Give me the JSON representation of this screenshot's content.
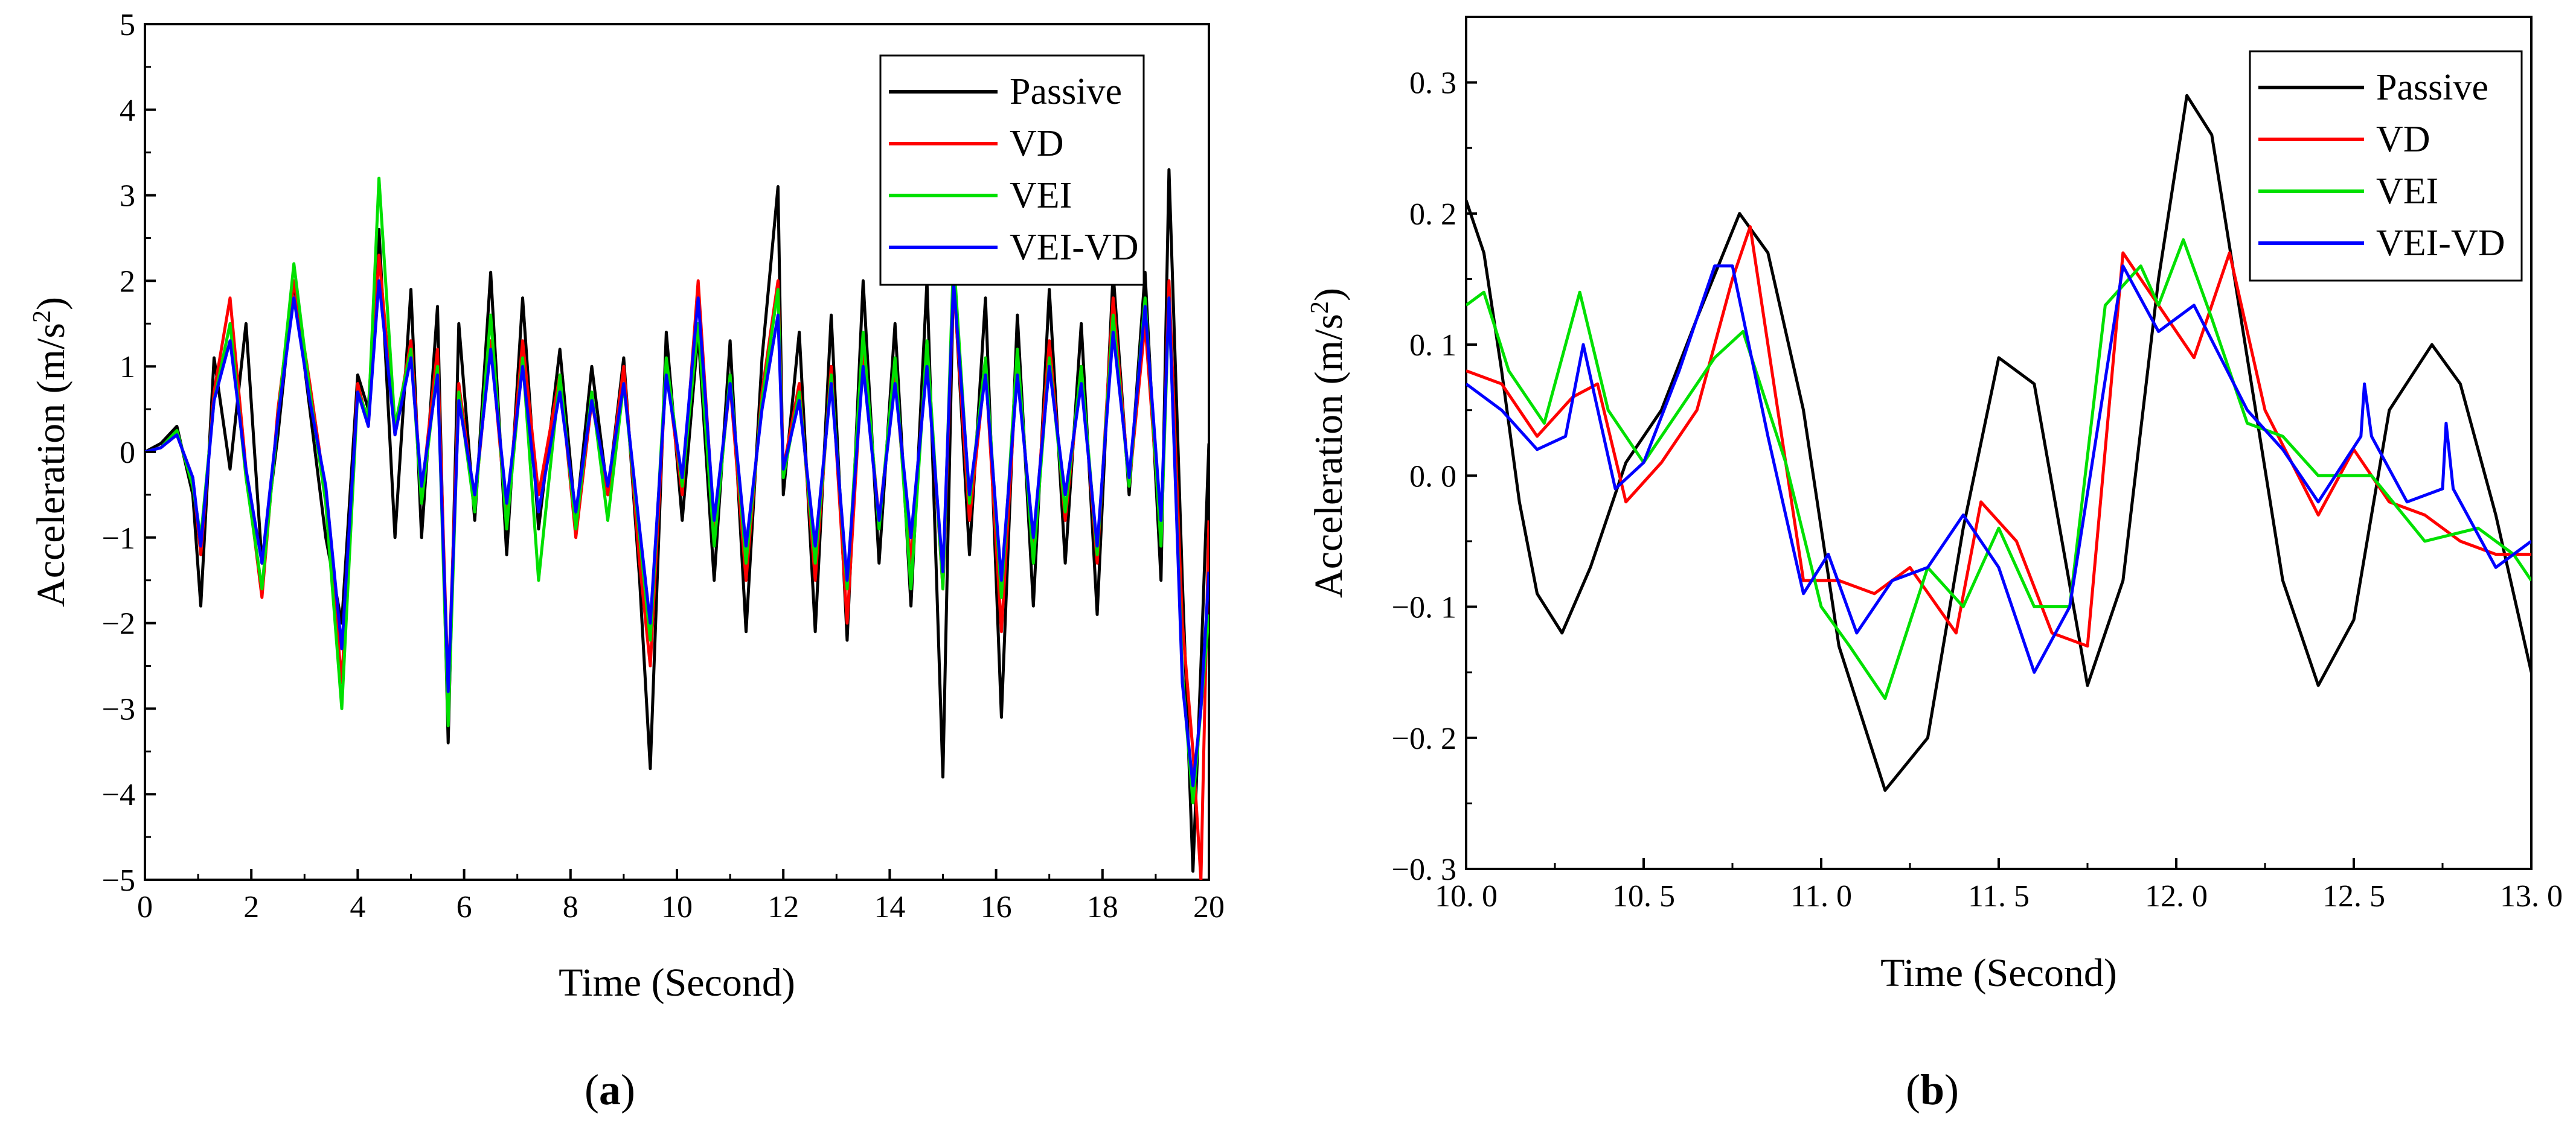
{
  "chart_data": [
    {
      "type": "line",
      "panel_label": "a",
      "title": "",
      "xlabel": "Time (Second)",
      "ylabel": "Acceleration (m/s",
      "ylabel_sup": "2",
      "ylabel_close": ")",
      "xlim": [
        0,
        20
      ],
      "ylim": [
        -5,
        5
      ],
      "xticks": [
        0,
        2,
        4,
        6,
        8,
        10,
        12,
        14,
        16,
        18,
        20
      ],
      "xtick_labels": [
        "0",
        "2",
        "4",
        "6",
        "8",
        "10",
        "12",
        "14",
        "16",
        "18",
        "20"
      ],
      "yticks": [
        5,
        4,
        3,
        2,
        1,
        0,
        -1,
        -2,
        -3,
        -4,
        -5
      ],
      "ytick_labels": [
        "5",
        "4",
        "3",
        "2",
        "1",
        "0",
        "−1",
        "−2",
        "−3",
        "−4",
        "−5"
      ],
      "grid": false,
      "legend_position": "top-right",
      "series": [
        {
          "name": "Passive",
          "color": "#000000",
          "x": [
            0,
            0.3,
            0.6,
            0.9,
            1.05,
            1.3,
            1.6,
            1.9,
            2.2,
            2.5,
            2.8,
            3.1,
            3.4,
            3.7,
            4.0,
            4.2,
            4.4,
            4.7,
            5.0,
            5.2,
            5.5,
            5.7,
            5.9,
            6.2,
            6.5,
            6.8,
            7.1,
            7.4,
            7.8,
            8.1,
            8.4,
            8.7,
            9.0,
            9.3,
            9.5,
            9.8,
            10.1,
            10.4,
            10.7,
            11.0,
            11.3,
            11.6,
            11.9,
            12.0,
            12.3,
            12.6,
            12.9,
            13.2,
            13.5,
            13.8,
            14.1,
            14.4,
            14.7,
            15.0,
            15.2,
            15.5,
            15.8,
            16.1,
            16.4,
            16.7,
            17.0,
            17.3,
            17.6,
            17.9,
            18.2,
            18.5,
            18.8,
            19.1,
            19.25,
            19.5,
            19.7,
            19.85,
            20.0
          ],
          "values": [
            0,
            0.1,
            0.3,
            -0.5,
            -1.8,
            1.1,
            -0.2,
            1.5,
            -1.3,
            0.2,
            2.0,
            0.5,
            -1.0,
            -2.0,
            0.9,
            0.5,
            2.6,
            -1.0,
            1.9,
            -1.0,
            1.7,
            -3.4,
            1.5,
            -0.8,
            2.1,
            -1.2,
            1.8,
            -0.9,
            1.2,
            -0.8,
            1.0,
            -0.5,
            1.1,
            -1.5,
            -3.7,
            1.4,
            -0.8,
            1.4,
            -1.5,
            1.3,
            -2.1,
            1.1,
            3.1,
            -0.5,
            1.4,
            -2.1,
            1.6,
            -2.2,
            2.0,
            -1.3,
            1.5,
            -1.8,
            2.0,
            -3.8,
            2.1,
            -1.2,
            1.8,
            -3.1,
            1.6,
            -1.8,
            1.9,
            -1.3,
            1.5,
            -1.9,
            2.1,
            -0.5,
            2.1,
            -1.5,
            3.3,
            -1.5,
            -4.9,
            -2.5,
            0.1
          ]
        },
        {
          "name": "VD",
          "color": "#ff0000",
          "x": [
            0,
            0.3,
            0.6,
            0.9,
            1.05,
            1.3,
            1.6,
            1.9,
            2.2,
            2.5,
            2.8,
            3.1,
            3.4,
            3.7,
            4.0,
            4.2,
            4.4,
            4.7,
            5.0,
            5.2,
            5.5,
            5.7,
            5.9,
            6.2,
            6.5,
            6.8,
            7.1,
            7.4,
            7.8,
            8.1,
            8.4,
            8.7,
            9.0,
            9.3,
            9.5,
            9.8,
            10.1,
            10.4,
            10.7,
            11.0,
            11.3,
            11.6,
            11.9,
            12.0,
            12.3,
            12.6,
            12.9,
            13.2,
            13.5,
            13.8,
            14.1,
            14.4,
            14.7,
            15.0,
            15.2,
            15.5,
            15.8,
            16.1,
            16.4,
            16.7,
            17.0,
            17.3,
            17.6,
            17.9,
            18.2,
            18.5,
            18.8,
            19.1,
            19.25,
            19.5,
            19.7,
            19.85,
            20.0
          ],
          "values": [
            0,
            0.05,
            0.2,
            -0.3,
            -1.2,
            0.7,
            1.8,
            -0.2,
            -1.7,
            0.5,
            2.0,
            0.8,
            -0.5,
            -2.7,
            0.8,
            0.3,
            2.3,
            0.2,
            1.3,
            -0.5,
            1.2,
            -2.8,
            0.8,
            -0.6,
            1.3,
            -0.8,
            1.3,
            -0.5,
            0.9,
            -1.0,
            0.6,
            -0.5,
            1.0,
            -1.3,
            -2.5,
            1.0,
            -0.5,
            2.0,
            -0.9,
            0.8,
            -1.5,
            0.7,
            2.0,
            -0.2,
            0.8,
            -1.5,
            1.0,
            -2.0,
            1.2,
            -0.8,
            0.9,
            -1.3,
            1.2,
            -1.6,
            2.0,
            -0.8,
            1.0,
            -2.1,
            1.1,
            -1.2,
            1.3,
            -0.8,
            1.0,
            -1.3,
            1.8,
            -0.4,
            1.5,
            -1.0,
            2.0,
            -2.0,
            -3.5,
            -5.0,
            -0.8
          ]
        },
        {
          "name": "VEI",
          "color": "#00e000",
          "x": [
            0,
            0.3,
            0.6,
            0.9,
            1.05,
            1.3,
            1.6,
            1.9,
            2.2,
            2.5,
            2.8,
            3.1,
            3.4,
            3.7,
            4.0,
            4.2,
            4.4,
            4.7,
            5.0,
            5.2,
            5.5,
            5.7,
            5.9,
            6.2,
            6.5,
            6.8,
            7.1,
            7.4,
            7.8,
            8.1,
            8.4,
            8.7,
            9.0,
            9.3,
            9.5,
            9.8,
            10.1,
            10.4,
            10.7,
            11.0,
            11.3,
            11.6,
            11.9,
            12.0,
            12.3,
            12.6,
            12.9,
            13.2,
            13.5,
            13.8,
            14.1,
            14.4,
            14.7,
            15.0,
            15.2,
            15.5,
            15.8,
            16.1,
            16.4,
            16.7,
            17.0,
            17.3,
            17.6,
            17.9,
            18.2,
            18.5,
            18.8,
            19.1,
            19.25,
            19.5,
            19.7,
            19.85,
            20.0
          ],
          "values": [
            0,
            0.05,
            0.25,
            -0.4,
            -1.0,
            0.6,
            1.5,
            -0.3,
            -1.6,
            0.4,
            2.2,
            0.7,
            -0.6,
            -3.0,
            0.7,
            0.4,
            3.2,
            0.3,
            1.2,
            -0.6,
            1.0,
            -3.2,
            0.7,
            -0.7,
            1.6,
            -0.9,
            1.1,
            -1.5,
            0.9,
            -0.9,
            0.7,
            -0.8,
            0.8,
            -1.0,
            -2.2,
            1.1,
            -0.4,
            1.5,
            -1.1,
            0.9,
            -1.3,
            0.6,
            1.9,
            -0.3,
            0.7,
            -1.3,
            0.9,
            -1.6,
            1.4,
            -0.9,
            1.1,
            -1.6,
            1.3,
            -1.6,
            2.3,
            -0.6,
            1.1,
            -1.7,
            1.2,
            -1.3,
            1.1,
            -0.7,
            1.0,
            -1.2,
            1.6,
            -0.4,
            1.8,
            -1.1,
            1.8,
            -2.6,
            -4.1,
            -3.0,
            -1.9
          ]
        },
        {
          "name": "VEI-VD",
          "color": "#0000ff",
          "x": [
            0,
            0.3,
            0.6,
            0.9,
            1.05,
            1.3,
            1.6,
            1.9,
            2.2,
            2.5,
            2.8,
            3.1,
            3.4,
            3.7,
            4.0,
            4.2,
            4.4,
            4.7,
            5.0,
            5.2,
            5.5,
            5.7,
            5.9,
            6.2,
            6.5,
            6.8,
            7.1,
            7.4,
            7.8,
            8.1,
            8.4,
            8.7,
            9.0,
            9.3,
            9.5,
            9.8,
            10.1,
            10.4,
            10.7,
            11.0,
            11.3,
            11.6,
            11.9,
            12.0,
            12.3,
            12.6,
            12.9,
            13.2,
            13.5,
            13.8,
            14.1,
            14.4,
            14.7,
            15.0,
            15.2,
            15.5,
            15.8,
            16.1,
            16.4,
            16.7,
            17.0,
            17.3,
            17.6,
            17.9,
            18.2,
            18.5,
            18.8,
            19.1,
            19.25,
            19.5,
            19.7,
            19.85,
            20.0
          ],
          "values": [
            0,
            0.05,
            0.2,
            -0.3,
            -1.1,
            0.6,
            1.3,
            -0.2,
            -1.3,
            0.4,
            1.8,
            0.6,
            -0.4,
            -2.3,
            0.7,
            0.3,
            2.0,
            0.2,
            1.1,
            -0.4,
            0.9,
            -2.8,
            0.6,
            -0.5,
            1.2,
            -0.6,
            1.0,
            -0.7,
            0.7,
            -0.7,
            0.6,
            -0.4,
            0.8,
            -0.9,
            -2.0,
            0.9,
            -0.3,
            1.8,
            -0.8,
            0.8,
            -1.1,
            0.5,
            1.6,
            -0.2,
            0.6,
            -1.1,
            0.8,
            -1.5,
            1.0,
            -0.8,
            0.8,
            -1.0,
            1.0,
            -1.4,
            2.0,
            -0.5,
            0.9,
            -1.5,
            0.9,
            -1.0,
            1.0,
            -0.5,
            0.8,
            -1.1,
            1.4,
            -0.3,
            1.7,
            -0.8,
            1.8,
            -2.7,
            -3.9,
            -3.0,
            -1.4
          ]
        }
      ]
    },
    {
      "type": "line",
      "panel_label": "b",
      "title": "",
      "xlabel": "Time (Second)",
      "ylabel": "Acceleration (m/s",
      "ylabel_sup": "2",
      "ylabel_close": ")",
      "xlim": [
        10.0,
        13.0
      ],
      "ylim": [
        -0.3,
        0.35
      ],
      "xticks": [
        10.0,
        10.5,
        11.0,
        11.5,
        12.0,
        12.5,
        13.0
      ],
      "xtick_labels": [
        "10. 0",
        "10. 5",
        "11. 0",
        "11. 5",
        "12. 0",
        "12. 5",
        "13. 0"
      ],
      "yticks": [
        0.3,
        0.2,
        0.1,
        0.0,
        -0.1,
        -0.2,
        -0.3
      ],
      "ytick_labels": [
        "0. 3",
        "0. 2",
        "0. 1",
        "0. 0",
        "−0. 1",
        "−0. 2",
        "−0. 3"
      ],
      "grid": false,
      "legend_position": "top-right",
      "series": [
        {
          "name": "Passive",
          "color": "#000000",
          "x": [
            10.0,
            10.05,
            10.1,
            10.15,
            10.2,
            10.27,
            10.35,
            10.45,
            10.55,
            10.65,
            10.77,
            10.85,
            10.95,
            11.05,
            11.18,
            11.3,
            11.4,
            11.5,
            11.6,
            11.75,
            11.85,
            11.95,
            12.03,
            12.1,
            12.2,
            12.3,
            12.4,
            12.5,
            12.6,
            12.72,
            12.8,
            12.9,
            13.0
          ],
          "values": [
            0.21,
            0.17,
            0.08,
            -0.02,
            -0.09,
            -0.12,
            -0.07,
            0.01,
            0.05,
            0.12,
            0.2,
            0.17,
            0.05,
            -0.13,
            -0.24,
            -0.2,
            -0.04,
            0.09,
            0.07,
            -0.16,
            -0.08,
            0.15,
            0.29,
            0.26,
            0.09,
            -0.08,
            -0.16,
            -0.11,
            0.05,
            0.1,
            0.07,
            -0.03,
            -0.15
          ]
        },
        {
          "name": "VD",
          "color": "#ff0000",
          "x": [
            10.0,
            10.1,
            10.2,
            10.3,
            10.37,
            10.45,
            10.55,
            10.65,
            10.75,
            10.8,
            10.85,
            10.95,
            11.05,
            11.15,
            11.25,
            11.38,
            11.45,
            11.55,
            11.65,
            11.75,
            11.85,
            11.95,
            12.05,
            12.15,
            12.25,
            12.4,
            12.5,
            12.6,
            12.7,
            12.8,
            12.9,
            13.0
          ],
          "values": [
            0.08,
            0.07,
            0.03,
            0.06,
            0.07,
            -0.02,
            0.01,
            0.05,
            0.15,
            0.19,
            0.1,
            -0.08,
            -0.08,
            -0.09,
            -0.07,
            -0.12,
            -0.02,
            -0.05,
            -0.12,
            -0.13,
            0.17,
            0.13,
            0.09,
            0.17,
            0.05,
            -0.03,
            0.02,
            -0.02,
            -0.03,
            -0.05,
            -0.06,
            -0.06
          ]
        },
        {
          "name": "VEI",
          "color": "#00e000",
          "x": [
            10.0,
            10.05,
            10.12,
            10.22,
            10.32,
            10.4,
            10.5,
            10.6,
            10.7,
            10.78,
            10.9,
            11.0,
            11.08,
            11.18,
            11.3,
            11.4,
            11.5,
            11.6,
            11.7,
            11.8,
            11.9,
            11.95,
            12.02,
            12.1,
            12.2,
            12.3,
            12.4,
            12.55,
            12.7,
            12.85,
            12.95,
            13.0
          ],
          "values": [
            0.13,
            0.14,
            0.08,
            0.04,
            0.14,
            0.05,
            0.01,
            0.05,
            0.09,
            0.11,
            0.01,
            -0.1,
            -0.13,
            -0.17,
            -0.07,
            -0.1,
            -0.04,
            -0.1,
            -0.1,
            0.13,
            0.16,
            0.13,
            0.18,
            0.12,
            0.04,
            0.03,
            0.0,
            0.0,
            -0.05,
            -0.04,
            -0.06,
            -0.08
          ]
        },
        {
          "name": "VEI-VD",
          "color": "#0000ff",
          "x": [
            10.0,
            10.1,
            10.2,
            10.28,
            10.33,
            10.42,
            10.5,
            10.6,
            10.7,
            10.75,
            10.85,
            10.95,
            11.02,
            11.1,
            11.2,
            11.3,
            11.4,
            11.5,
            11.6,
            11.7,
            11.85,
            11.95,
            12.05,
            12.2,
            12.3,
            12.4,
            12.52,
            12.53,
            12.55,
            12.65,
            12.75,
            12.76,
            12.78,
            12.9,
            13.0
          ],
          "values": [
            0.07,
            0.05,
            0.02,
            0.03,
            0.1,
            -0.01,
            0.01,
            0.08,
            0.16,
            0.16,
            0.03,
            -0.09,
            -0.06,
            -0.12,
            -0.08,
            -0.07,
            -0.03,
            -0.07,
            -0.15,
            -0.1,
            0.16,
            0.11,
            0.13,
            0.05,
            0.02,
            -0.02,
            0.03,
            0.07,
            0.03,
            -0.02,
            -0.01,
            0.04,
            -0.01,
            -0.07,
            -0.05
          ]
        }
      ]
    }
  ]
}
